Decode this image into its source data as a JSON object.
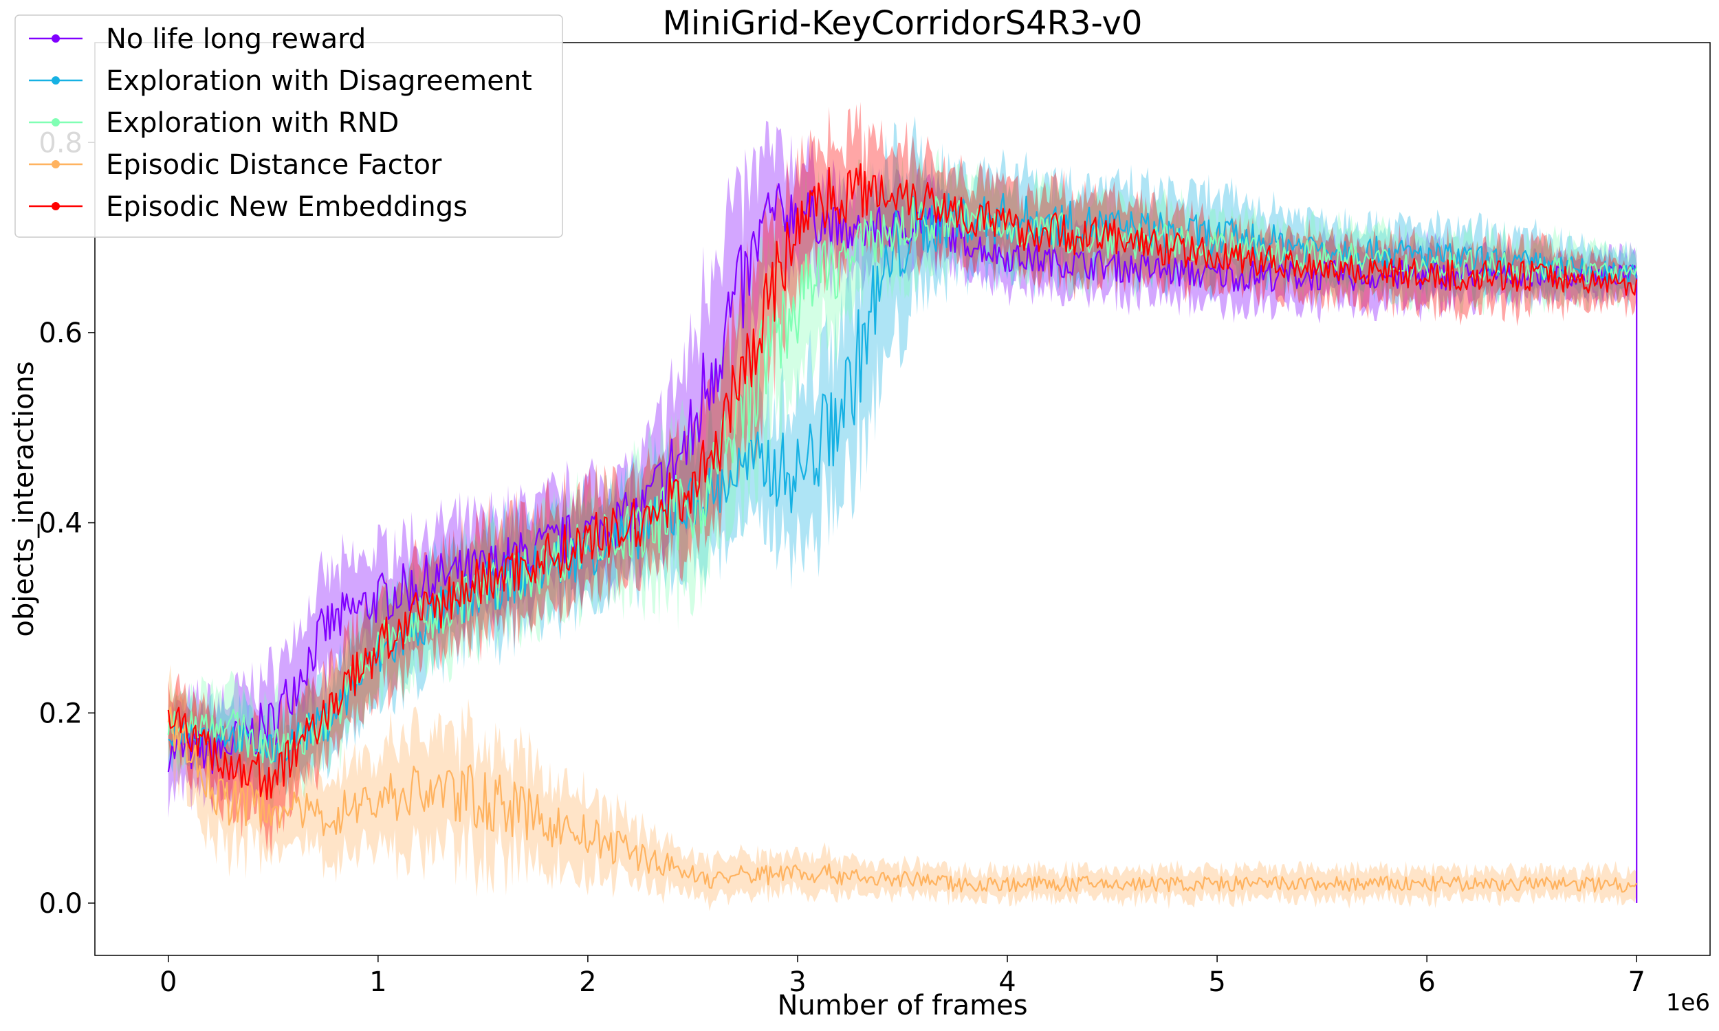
{
  "chart_data": {
    "type": "line",
    "title": "MiniGrid-KeyCorridorS4R3-v0",
    "xlabel": "Number of frames",
    "ylabel": "objects_interactions",
    "x_multiplier_label": "1e6",
    "xlim": [
      -0.35,
      7.35
    ],
    "ylim": [
      -0.055,
      0.905
    ],
    "x_ticks": [
      0,
      1,
      2,
      3,
      4,
      5,
      6,
      7
    ],
    "x_tick_labels": [
      "0",
      "1",
      "2",
      "3",
      "4",
      "5",
      "6",
      "7"
    ],
    "y_ticks": [
      0.0,
      0.2,
      0.4,
      0.6,
      0.8
    ],
    "y_tick_labels": [
      "0.0",
      "0.2",
      "0.4",
      "0.6",
      "0.8"
    ],
    "grid": false,
    "legend_position": "top-left",
    "x": [
      0,
      0.25,
      0.5,
      0.75,
      1.0,
      1.25,
      1.5,
      1.75,
      2.0,
      2.25,
      2.5,
      2.6,
      2.75,
      2.85,
      3.0,
      3.1,
      3.25,
      3.35,
      3.5,
      3.6,
      3.75,
      4.0,
      4.5,
      5.0,
      5.5,
      6.0,
      6.5,
      7.0
    ],
    "series": [
      {
        "name": "No life long reward",
        "color": "#8000ff",
        "values": [
          0.16,
          0.16,
          0.19,
          0.29,
          0.32,
          0.34,
          0.35,
          0.37,
          0.39,
          0.41,
          0.49,
          0.58,
          0.65,
          0.72,
          0.73,
          0.72,
          0.7,
          0.71,
          0.71,
          0.72,
          0.7,
          0.68,
          0.67,
          0.66,
          0.66,
          0.66,
          0.66,
          0.66
        ],
        "band": [
          0.04,
          0.05,
          0.05,
          0.05,
          0.05,
          0.05,
          0.05,
          0.05,
          0.05,
          0.05,
          0.09,
          0.12,
          0.09,
          0.07,
          0.05,
          0.05,
          0.04,
          0.04,
          0.04,
          0.04,
          0.03,
          0.03,
          0.03,
          0.03,
          0.03,
          0.03,
          0.02,
          0.02
        ],
        "drop_to": 0.0
      },
      {
        "name": "Exploration with Disagreement",
        "color": "#16b1e3",
        "values": [
          0.18,
          0.18,
          0.16,
          0.19,
          0.26,
          0.3,
          0.33,
          0.35,
          0.37,
          0.39,
          0.42,
          0.43,
          0.46,
          0.46,
          0.45,
          0.48,
          0.54,
          0.62,
          0.7,
          0.71,
          0.72,
          0.72,
          0.71,
          0.7,
          0.69,
          0.68,
          0.67,
          0.66
        ],
        "band": [
          0.03,
          0.03,
          0.03,
          0.04,
          0.05,
          0.05,
          0.05,
          0.05,
          0.05,
          0.05,
          0.06,
          0.06,
          0.06,
          0.07,
          0.08,
          0.09,
          0.1,
          0.1,
          0.09,
          0.06,
          0.05,
          0.05,
          0.04,
          0.04,
          0.03,
          0.03,
          0.03,
          0.02
        ]
      },
      {
        "name": "Exploration with RND",
        "color": "#80ffb4",
        "values": [
          0.19,
          0.19,
          0.16,
          0.19,
          0.27,
          0.3,
          0.33,
          0.35,
          0.38,
          0.39,
          0.42,
          0.45,
          0.52,
          0.58,
          0.63,
          0.66,
          0.68,
          0.7,
          0.71,
          0.72,
          0.72,
          0.71,
          0.7,
          0.69,
          0.68,
          0.67,
          0.67,
          0.66
        ],
        "band": [
          0.03,
          0.04,
          0.04,
          0.04,
          0.05,
          0.05,
          0.05,
          0.05,
          0.05,
          0.06,
          0.08,
          0.09,
          0.09,
          0.09,
          0.08,
          0.07,
          0.06,
          0.05,
          0.05,
          0.05,
          0.04,
          0.04,
          0.04,
          0.03,
          0.03,
          0.03,
          0.03,
          0.02
        ]
      },
      {
        "name": "Episodic Distance Factor",
        "color": "#ffb360",
        "values": [
          0.19,
          0.11,
          0.1,
          0.09,
          0.11,
          0.12,
          0.11,
          0.09,
          0.07,
          0.05,
          0.03,
          0.025,
          0.03,
          0.03,
          0.035,
          0.03,
          0.03,
          0.025,
          0.025,
          0.025,
          0.02,
          0.02,
          0.02,
          0.02,
          0.02,
          0.02,
          0.02,
          0.02
        ],
        "band": [
          0.04,
          0.05,
          0.04,
          0.04,
          0.05,
          0.06,
          0.06,
          0.05,
          0.04,
          0.03,
          0.02,
          0.02,
          0.02,
          0.02,
          0.02,
          0.02,
          0.02,
          0.015,
          0.015,
          0.015,
          0.015,
          0.015,
          0.015,
          0.015,
          0.015,
          0.015,
          0.015,
          0.015
        ]
      },
      {
        "name": "Episodic New Embeddings",
        "color": "#ff0000",
        "values": [
          0.2,
          0.15,
          0.13,
          0.2,
          0.27,
          0.31,
          0.34,
          0.36,
          0.38,
          0.4,
          0.44,
          0.47,
          0.56,
          0.63,
          0.71,
          0.74,
          0.75,
          0.75,
          0.75,
          0.74,
          0.73,
          0.71,
          0.7,
          0.68,
          0.67,
          0.66,
          0.66,
          0.65
        ],
        "band": [
          0.03,
          0.04,
          0.05,
          0.04,
          0.05,
          0.05,
          0.05,
          0.05,
          0.05,
          0.05,
          0.06,
          0.07,
          0.08,
          0.08,
          0.06,
          0.06,
          0.06,
          0.05,
          0.05,
          0.05,
          0.04,
          0.04,
          0.04,
          0.03,
          0.03,
          0.03,
          0.03,
          0.02
        ]
      }
    ]
  }
}
